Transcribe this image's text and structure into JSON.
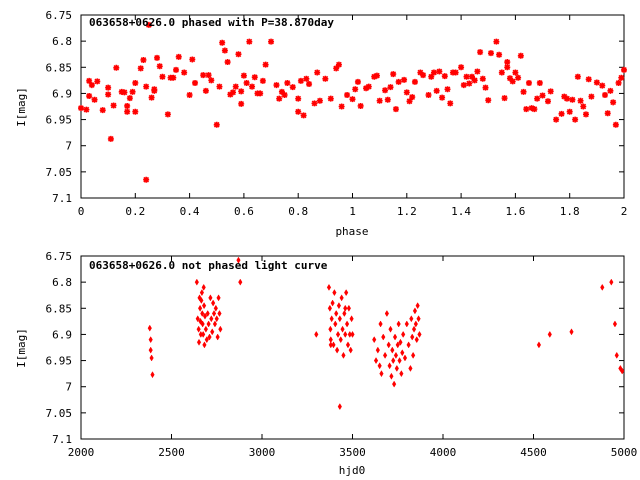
{
  "colors": {
    "points": "#ff0000",
    "axes": "#000000",
    "background": "#ffffff"
  },
  "chart_data": [
    {
      "type": "scatter",
      "title": "063658+0626.0 phased with P=38.870day",
      "xlabel": "phase",
      "ylabel": "I[mag]",
      "xlim": [
        0,
        2
      ],
      "ylim": [
        6.75,
        7.1
      ],
      "y_inverted": true,
      "grid": false,
      "marker": "star",
      "x_ticks": [
        0,
        0.2,
        0.4,
        0.6,
        0.8,
        1,
        1.2,
        1.4,
        1.6,
        1.8,
        2
      ],
      "x_tick_labels": [
        "0",
        "0.2",
        "0.4",
        "0.6",
        "0.8",
        "1",
        "1.2",
        "1.4",
        "1.6",
        "1.8",
        "2"
      ],
      "y_ticks": [
        6.75,
        6.8,
        6.85,
        6.9,
        6.95,
        7,
        7.05,
        7.1
      ],
      "y_tick_labels": [
        "6.75",
        "6.8",
        "6.85",
        "6.9",
        "6.95",
        "7",
        "7.05",
        "7.1"
      ],
      "points": [
        [
          0.0,
          6.928
        ],
        [
          0.02,
          6.931
        ],
        [
          0.03,
          6.905
        ],
        [
          0.03,
          6.876
        ],
        [
          0.04,
          6.884
        ],
        [
          0.05,
          6.912
        ],
        [
          0.06,
          6.877
        ],
        [
          0.08,
          6.932
        ],
        [
          0.1,
          6.889
        ],
        [
          0.1,
          6.902
        ],
        [
          0.11,
          6.987
        ],
        [
          0.12,
          6.923
        ],
        [
          0.13,
          6.851
        ],
        [
          0.15,
          6.897
        ],
        [
          0.16,
          6.898
        ],
        [
          0.17,
          6.935
        ],
        [
          0.17,
          6.924
        ],
        [
          0.18,
          6.909
        ],
        [
          0.19,
          6.897
        ],
        [
          0.2,
          6.935
        ],
        [
          0.2,
          6.88
        ],
        [
          0.22,
          6.852
        ],
        [
          0.23,
          6.836
        ],
        [
          0.24,
          6.887
        ],
        [
          0.24,
          7.065
        ],
        [
          0.25,
          6.769
        ],
        [
          0.26,
          6.908
        ],
        [
          0.27,
          6.892
        ],
        [
          0.27,
          6.895
        ],
        [
          0.28,
          6.832
        ],
        [
          0.29,
          6.848
        ],
        [
          0.3,
          6.868
        ],
        [
          0.32,
          6.94
        ],
        [
          0.33,
          6.87
        ],
        [
          0.34,
          6.87
        ],
        [
          0.35,
          6.855
        ],
        [
          0.36,
          6.83
        ],
        [
          0.38,
          6.86
        ],
        [
          0.4,
          6.903
        ],
        [
          0.41,
          6.835
        ],
        [
          0.42,
          6.88
        ],
        [
          0.45,
          6.865
        ],
        [
          0.46,
          6.895
        ],
        [
          0.47,
          6.865
        ],
        [
          0.48,
          6.875
        ],
        [
          0.5,
          6.96
        ],
        [
          0.51,
          6.887
        ],
        [
          0.52,
          6.803
        ],
        [
          0.53,
          6.818
        ],
        [
          0.54,
          6.84
        ],
        [
          0.55,
          6.902
        ],
        [
          0.56,
          6.898
        ],
        [
          0.57,
          6.887
        ],
        [
          0.58,
          6.825
        ],
        [
          0.59,
          6.896
        ],
        [
          0.6,
          6.866
        ],
        [
          0.61,
          6.88
        ],
        [
          0.62,
          6.801
        ],
        [
          0.63,
          6.887
        ],
        [
          0.64,
          6.869
        ],
        [
          0.65,
          6.9
        ],
        [
          0.66,
          6.9
        ],
        [
          0.67,
          6.876
        ],
        [
          0.68,
          6.845
        ],
        [
          0.7,
          6.801
        ],
        [
          0.72,
          6.884
        ],
        [
          0.73,
          6.91
        ],
        [
          0.74,
          6.897
        ],
        [
          0.75,
          6.903
        ],
        [
          0.76,
          6.88
        ],
        [
          0.78,
          6.888
        ],
        [
          0.8,
          6.935
        ],
        [
          0.8,
          6.91
        ],
        [
          0.81,
          6.876
        ],
        [
          0.82,
          6.942
        ],
        [
          0.83,
          6.872
        ],
        [
          0.84,
          6.882
        ],
        [
          0.86,
          6.919
        ],
        [
          0.87,
          6.86
        ],
        [
          0.88,
          6.914
        ],
        [
          0.9,
          6.872
        ],
        [
          0.92,
          6.91
        ],
        [
          0.94,
          6.852
        ],
        [
          0.95,
          6.845
        ],
        [
          0.96,
          6.925
        ],
        [
          0.98,
          6.903
        ],
        [
          1.0,
          6.911
        ],
        [
          1.01,
          6.892
        ],
        [
          1.02,
          6.878
        ],
        [
          1.03,
          6.924
        ],
        [
          1.05,
          6.89
        ],
        [
          1.06,
          6.887
        ],
        [
          1.08,
          6.868
        ],
        [
          1.09,
          6.866
        ],
        [
          1.1,
          6.914
        ],
        [
          1.12,
          6.894
        ],
        [
          1.13,
          6.912
        ],
        [
          1.14,
          6.888
        ],
        [
          1.15,
          6.863
        ],
        [
          1.16,
          6.93
        ],
        [
          1.17,
          6.878
        ],
        [
          1.19,
          6.874
        ],
        [
          1.2,
          6.898
        ],
        [
          1.21,
          6.915
        ],
        [
          1.22,
          6.907
        ],
        [
          1.23,
          6.878
        ],
        [
          1.25,
          6.86
        ],
        [
          1.26,
          6.865
        ],
        [
          1.28,
          6.903
        ],
        [
          1.29,
          6.868
        ],
        [
          1.3,
          6.86
        ],
        [
          1.31,
          6.895
        ],
        [
          1.32,
          6.858
        ],
        [
          1.33,
          6.908
        ],
        [
          1.34,
          6.867
        ],
        [
          1.35,
          6.892
        ],
        [
          1.36,
          6.919
        ],
        [
          1.37,
          6.86
        ],
        [
          1.38,
          6.86
        ],
        [
          1.4,
          6.85
        ],
        [
          1.41,
          6.884
        ],
        [
          1.42,
          6.868
        ],
        [
          1.43,
          6.881
        ],
        [
          1.44,
          6.868
        ],
        [
          1.45,
          6.875
        ],
        [
          1.46,
          6.858
        ],
        [
          1.47,
          6.821
        ],
        [
          1.48,
          6.872
        ],
        [
          1.49,
          6.889
        ],
        [
          1.5,
          6.913
        ],
        [
          1.51,
          6.823
        ],
        [
          1.53,
          6.801
        ],
        [
          1.54,
          6.826
        ],
        [
          1.55,
          6.86
        ],
        [
          1.56,
          6.909
        ],
        [
          1.57,
          6.85
        ],
        [
          1.58,
          6.871
        ],
        [
          1.59,
          6.877
        ],
        [
          1.6,
          6.86
        ],
        [
          1.61,
          6.87
        ],
        [
          1.62,
          6.828
        ],
        [
          1.63,
          6.897
        ],
        [
          1.64,
          6.93
        ],
        [
          1.65,
          6.88
        ],
        [
          1.66,
          6.928
        ],
        [
          1.67,
          6.93
        ],
        [
          1.68,
          6.91
        ],
        [
          1.69,
          6.88
        ],
        [
          1.7,
          6.904
        ],
        [
          1.72,
          6.915
        ],
        [
          1.73,
          6.896
        ],
        [
          1.75,
          6.95
        ],
        [
          1.77,
          6.939
        ],
        [
          1.78,
          6.906
        ],
        [
          1.79,
          6.91
        ],
        [
          1.8,
          6.935
        ],
        [
          1.81,
          6.912
        ],
        [
          1.82,
          6.95
        ],
        [
          1.83,
          6.868
        ],
        [
          1.84,
          6.914
        ],
        [
          1.85,
          6.925
        ],
        [
          1.86,
          6.94
        ],
        [
          1.87,
          6.873
        ],
        [
          1.88,
          6.906
        ],
        [
          1.9,
          6.879
        ],
        [
          1.92,
          6.885
        ],
        [
          1.93,
          6.903
        ],
        [
          1.94,
          6.938
        ],
        [
          1.95,
          6.895
        ],
        [
          1.96,
          6.917
        ],
        [
          1.97,
          6.96
        ],
        [
          1.98,
          6.88
        ],
        [
          1.99,
          6.87
        ],
        [
          2.0,
          6.855
        ],
        [
          0.59,
          6.92
        ],
        [
          1.57,
          6.84
        ]
      ]
    },
    {
      "type": "scatter",
      "title": "063658+0626.0 not phased light curve",
      "xlabel": "hjd0",
      "ylabel": "I[mag]",
      "xlim": [
        2000,
        5000
      ],
      "ylim": [
        6.75,
        7.1
      ],
      "y_inverted": true,
      "grid": false,
      "marker": "diamond",
      "x_ticks": [
        2000,
        2500,
        3000,
        3500,
        4000,
        4500,
        5000
      ],
      "x_tick_labels": [
        "2000",
        "2500",
        "3000",
        "3500",
        "4000",
        "4500",
        "5000"
      ],
      "y_ticks": [
        6.75,
        6.8,
        6.85,
        6.9,
        6.95,
        7,
        7.05,
        7.1
      ],
      "y_tick_labels": [
        "6.75",
        "6.8",
        "6.85",
        "6.9",
        "6.95",
        "7",
        "7.05",
        "7.1"
      ],
      "points": [
        [
          2380,
          6.888
        ],
        [
          2385,
          6.91
        ],
        [
          2385,
          6.93
        ],
        [
          2390,
          6.945
        ],
        [
          2395,
          6.977
        ],
        [
          2640,
          6.8
        ],
        [
          2645,
          6.87
        ],
        [
          2650,
          6.89
        ],
        [
          2652,
          6.915
        ],
        [
          2655,
          6.83
        ],
        [
          2658,
          6.85
        ],
        [
          2660,
          6.875
        ],
        [
          2662,
          6.9
        ],
        [
          2665,
          6.835
        ],
        [
          2668,
          6.82
        ],
        [
          2670,
          6.86
        ],
        [
          2672,
          6.88
        ],
        [
          2675,
          6.9
        ],
        [
          2678,
          6.81
        ],
        [
          2680,
          6.845
        ],
        [
          2682,
          6.92
        ],
        [
          2685,
          6.865
        ],
        [
          2690,
          6.89
        ],
        [
          2695,
          6.91
        ],
        [
          2700,
          6.86
        ],
        [
          2705,
          6.88
        ],
        [
          2710,
          6.905
        ],
        [
          2715,
          6.83
        ],
        [
          2720,
          6.87
        ],
        [
          2725,
          6.895
        ],
        [
          2730,
          6.84
        ],
        [
          2735,
          6.86
        ],
        [
          2740,
          6.88
        ],
        [
          2745,
          6.85
        ],
        [
          2750,
          6.87
        ],
        [
          2755,
          6.905
        ],
        [
          2760,
          6.83
        ],
        [
          2765,
          6.86
        ],
        [
          2770,
          6.89
        ],
        [
          2870,
          6.758
        ],
        [
          2880,
          6.8
        ],
        [
          3300,
          6.9
        ],
        [
          3370,
          6.81
        ],
        [
          3375,
          6.85
        ],
        [
          3378,
          6.89
        ],
        [
          3380,
          6.91
        ],
        [
          3385,
          6.87
        ],
        [
          3390,
          6.84
        ],
        [
          3395,
          6.92
        ],
        [
          3400,
          6.82
        ],
        [
          3405,
          6.88
        ],
        [
          3410,
          6.86
        ],
        [
          3415,
          6.93
        ],
        [
          3420,
          6.9
        ],
        [
          3425,
          6.845
        ],
        [
          3430,
          6.87
        ],
        [
          3435,
          6.91
        ],
        [
          3440,
          6.83
        ],
        [
          3445,
          6.89
        ],
        [
          3450,
          6.94
        ],
        [
          3455,
          6.86
        ],
        [
          3460,
          6.9
        ],
        [
          3465,
          6.82
        ],
        [
          3470,
          6.88
        ],
        [
          3475,
          6.92
        ],
        [
          3480,
          6.85
        ],
        [
          3485,
          6.9
        ],
        [
          3490,
          6.93
        ],
        [
          3495,
          6.87
        ],
        [
          3500,
          6.9
        ],
        [
          3430,
          7.038
        ],
        [
          3380,
          6.92
        ],
        [
          3460,
          6.85
        ],
        [
          3620,
          6.91
        ],
        [
          3630,
          6.95
        ],
        [
          3640,
          6.93
        ],
        [
          3650,
          6.96
        ],
        [
          3655,
          6.88
        ],
        [
          3660,
          6.975
        ],
        [
          3670,
          6.905
        ],
        [
          3680,
          6.94
        ],
        [
          3690,
          6.86
        ],
        [
          3700,
          6.92
        ],
        [
          3705,
          6.96
        ],
        [
          3710,
          6.89
        ],
        [
          3715,
          6.98
        ],
        [
          3720,
          6.93
        ],
        [
          3725,
          6.95
        ],
        [
          3730,
          6.995
        ],
        [
          3735,
          6.905
        ],
        [
          3740,
          6.94
        ],
        [
          3745,
          6.965
        ],
        [
          3750,
          6.92
        ],
        [
          3755,
          6.88
        ],
        [
          3760,
          6.95
        ],
        [
          3765,
          6.915
        ],
        [
          3770,
          6.975
        ],
        [
          3775,
          6.935
        ],
        [
          3780,
          6.9
        ],
        [
          3790,
          6.945
        ],
        [
          3800,
          6.88
        ],
        [
          3810,
          6.92
        ],
        [
          3820,
          6.965
        ],
        [
          3825,
          6.87
        ],
        [
          3830,
          6.905
        ],
        [
          3835,
          6.94
        ],
        [
          3840,
          6.89
        ],
        [
          3845,
          6.855
        ],
        [
          3850,
          6.88
        ],
        [
          3855,
          6.91
        ],
        [
          3860,
          6.845
        ],
        [
          3865,
          6.87
        ],
        [
          3870,
          6.9
        ],
        [
          4530,
          6.92
        ],
        [
          4590,
          6.9
        ],
        [
          4710,
          6.895
        ],
        [
          4880,
          6.81
        ],
        [
          4930,
          6.8
        ],
        [
          4950,
          6.88
        ],
        [
          4960,
          6.94
        ],
        [
          4980,
          6.965
        ],
        [
          4990,
          6.97
        ]
      ]
    }
  ]
}
